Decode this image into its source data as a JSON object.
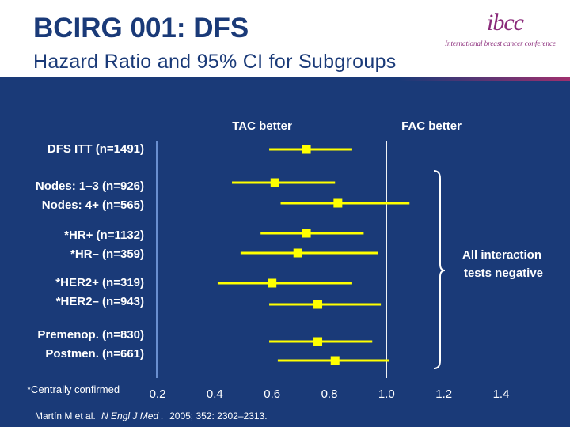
{
  "header": {
    "title": "BCIRG 001: DFS",
    "subtitle": "Hazard Ratio and 95% CI for Subgroups",
    "logo_mark": "ibcc",
    "logo_text": "International breast cancer conference"
  },
  "footnote": "*Centrally confirmed",
  "citation": {
    "authors": "Martín M et al.",
    "journal": "N Engl J Med",
    "details": "2005; 352: 2302–2313."
  },
  "annotation": {
    "line1": "All interaction",
    "line2": "tests negative"
  },
  "colors": {
    "background": "#1a3a78",
    "marker": "#ffff00",
    "text": "#ffffff",
    "axis": "#6a8fd0",
    "reference_line": "#ffffff"
  },
  "chart_data": {
    "type": "forest",
    "x_ticks": [
      0.2,
      0.4,
      0.6,
      0.8,
      1.0,
      1.2,
      1.4
    ],
    "x_tick_labels": [
      "0.2",
      "0.4",
      "0.6",
      "0.8",
      "1.0",
      "1.2",
      "1.4"
    ],
    "xlim": [
      0.2,
      1.4
    ],
    "reference_value": 1.0,
    "left_label": "TAC better",
    "right_label": "FAC better",
    "rows": [
      {
        "label": "DFS ITT (n=1491)",
        "hr": 0.72,
        "lo": 0.59,
        "hi": 0.88
      },
      {
        "label": "Nodes: 1–3 (n=926)",
        "hr": 0.61,
        "lo": 0.46,
        "hi": 0.82
      },
      {
        "label": "Nodes: 4+ (n=565)",
        "hr": 0.83,
        "lo": 0.63,
        "hi": 1.08
      },
      {
        "label": "*HR+ (n=1132)",
        "hr": 0.72,
        "lo": 0.56,
        "hi": 0.92
      },
      {
        "label": "*HR– (n=359)",
        "hr": 0.69,
        "lo": 0.49,
        "hi": 0.97
      },
      {
        "label": "*HER2+ (n=319)",
        "hr": 0.6,
        "lo": 0.41,
        "hi": 0.88
      },
      {
        "label": "*HER2– (n=943)",
        "hr": 0.76,
        "lo": 0.59,
        "hi": 0.98
      },
      {
        "label": "Premenop. (n=830)",
        "hr": 0.76,
        "lo": 0.59,
        "hi": 0.95
      },
      {
        "label": "Postmen. (n=661)",
        "hr": 0.82,
        "lo": 0.62,
        "hi": 1.01
      }
    ]
  }
}
